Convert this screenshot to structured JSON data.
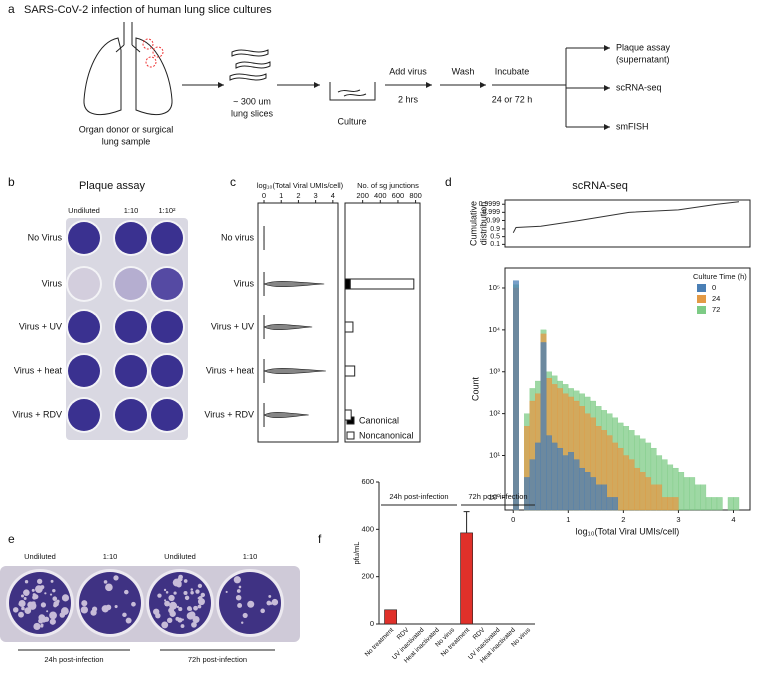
{
  "figure": {
    "a": {
      "letter": "a",
      "title": "SARS-CoV-2 infection of human lung slice cultures",
      "source": [
        "Organ donor or surgical",
        "lung sample"
      ],
      "slices": [
        "~ 300 um",
        "lung slices"
      ],
      "culture": "Culture",
      "add_virus": "Add virus",
      "add_time": "2 hrs",
      "wash": "Wash",
      "incubate": "Incubate",
      "incubate_time": "24 or 72 h",
      "outputs": [
        [
          "Plaque assay",
          "(supernatant)"
        ],
        [
          "scRNA-seq"
        ],
        [
          "smFISH"
        ]
      ]
    },
    "b": {
      "letter": "b",
      "title": "Plaque assay",
      "columns": [
        "Undiluted",
        "1:10",
        "1:10²"
      ],
      "rows": [
        "No Virus",
        "Virus",
        "Virus + UV",
        "Virus + heat",
        "Virus + RDV"
      ]
    },
    "c": {
      "letter": "c"
    },
    "d": {
      "letter": "d",
      "title": "scRNA-seq"
    },
    "e": {
      "letter": "e",
      "columns": [
        "Undiluted",
        "1:10",
        "Undiluted",
        "1:10"
      ],
      "groups": [
        "24h post-infection",
        "72h post-infection"
      ]
    },
    "f": {
      "letter": "f",
      "groups": [
        "24h post-infection",
        "72h post-infection"
      ]
    }
  },
  "chart_data": [
    {
      "type": "strip",
      "title": "log₁₀(Total Viral UMIs/cell)",
      "categories": [
        "No virus",
        "Virus",
        "Virus + UV",
        "Virus + heat",
        "Virus + RDV"
      ],
      "values": [
        0,
        3.5,
        2.8,
        3.6,
        2.6
      ],
      "color": "#222222",
      "xlim": [
        -0.35,
        4.3
      ],
      "xticks": [
        0,
        1,
        2,
        3,
        4
      ]
    },
    {
      "type": "stacked-bar-h",
      "title": "No. of sg junctions",
      "series": [
        {
          "name": "Canonical",
          "color": "#000000",
          "values": [
            0,
            60,
            0,
            0,
            0
          ]
        },
        {
          "name": "Noncanonical",
          "color": "#ffffff",
          "values": [
            0,
            720,
            90,
            110,
            70
          ]
        }
      ],
      "xlim": [
        0,
        850
      ],
      "xticks": [
        200,
        400,
        600,
        800
      ],
      "legend": "lower left"
    },
    {
      "type": "line",
      "ylabel": [
        "Cumulative",
        "distribution"
      ],
      "x": [
        0,
        0.05,
        0.5,
        1.2,
        2.1,
        3,
        3.7,
        4.1
      ],
      "values": [
        0.75,
        0.93,
        0.95,
        0.99,
        0.999,
        0.9995,
        0.9999,
        0.99995
      ],
      "yscale": "logit",
      "ylim": [
        0.05,
        0.99997
      ],
      "yticks": [
        0.1,
        0.5,
        0.9,
        0.99,
        0.999,
        0.9999
      ],
      "xlim": [
        -0.15,
        4.3
      ],
      "color": "#333333"
    },
    {
      "type": "histogram",
      "ylabel": "Count",
      "xlabel": "log₁₀(Total Viral UMIs/cell)",
      "legend_title": "Culture Time (h)",
      "legend": "upper right",
      "yscale": "log",
      "ylim": [
        0.5,
        300000
      ],
      "yticks": [
        {
          "value": 1,
          "label": "10⁰"
        },
        {
          "value": 10,
          "label": "10¹"
        },
        {
          "value": 100,
          "label": "10²"
        },
        {
          "value": 1000,
          "label": "10³"
        },
        {
          "value": 10000,
          "label": "10⁴"
        },
        {
          "value": 100000,
          "label": "10⁵"
        }
      ],
      "xlim": [
        -0.15,
        4.3
      ],
      "xticks": [
        0,
        1,
        2,
        3,
        4
      ],
      "bins": [
        0,
        0.1,
        0.2,
        0.3,
        0.4,
        0.5,
        0.6,
        0.7,
        0.8,
        0.9,
        1,
        1.1,
        1.2,
        1.3,
        1.4,
        1.5,
        1.6,
        1.7,
        1.8,
        1.9,
        2,
        2.1,
        2.2,
        2.3,
        2.4,
        2.5,
        2.6,
        2.7,
        2.8,
        2.9,
        3,
        3.1,
        3.2,
        3.3,
        3.4,
        3.5,
        3.6,
        3.7,
        3.8,
        3.9,
        4,
        4.1,
        4.2
      ],
      "series": [
        {
          "name": "0",
          "color": "#4a7fb5",
          "values": [
            150000,
            0,
            3,
            8,
            20,
            5000,
            30,
            20,
            15,
            10,
            12,
            8,
            5,
            4,
            3,
            2,
            2,
            1,
            1,
            0,
            0,
            0,
            0,
            0,
            0,
            0,
            0,
            0,
            0,
            0,
            0,
            0,
            0,
            0,
            0,
            0,
            0,
            0,
            0,
            0,
            0,
            0
          ]
        },
        {
          "name": "24",
          "color": "#e39a45",
          "values": [
            100000,
            0,
            50,
            200,
            300,
            8000,
            700,
            500,
            400,
            300,
            250,
            200,
            150,
            100,
            80,
            50,
            40,
            30,
            20,
            15,
            10,
            8,
            5,
            4,
            3,
            2,
            2,
            1,
            1,
            1,
            0,
            0,
            0,
            0,
            0,
            0,
            0,
            0,
            0,
            0,
            0,
            0
          ]
        },
        {
          "name": "72",
          "color": "#7dcb85",
          "values": [
            120000,
            0,
            100,
            400,
            600,
            10000,
            1000,
            800,
            600,
            500,
            400,
            350,
            300,
            250,
            200,
            150,
            120,
            100,
            80,
            60,
            50,
            40,
            30,
            25,
            20,
            15,
            10,
            8,
            6,
            5,
            4,
            3,
            3,
            2,
            2,
            1,
            1,
            1,
            0,
            1,
            1,
            0
          ]
        }
      ]
    },
    {
      "type": "bar",
      "ylabel": "pfu/mL",
      "categories": [
        "No treatment",
        "RDV",
        "UV inactivated",
        "Heat inactivated",
        "No virus",
        "No treatment",
        "RDV",
        "UV inactivated",
        "Heat inactivated",
        "No virus"
      ],
      "values": [
        60,
        0,
        0,
        0,
        0,
        385,
        0,
        0,
        0,
        0
      ],
      "errors": [
        null,
        null,
        null,
        null,
        null,
        90,
        null,
        null,
        null,
        null
      ],
      "ylim": [
        0,
        600
      ],
      "yticks": [
        0,
        200,
        400,
        600
      ],
      "color": "#e0302a"
    }
  ]
}
